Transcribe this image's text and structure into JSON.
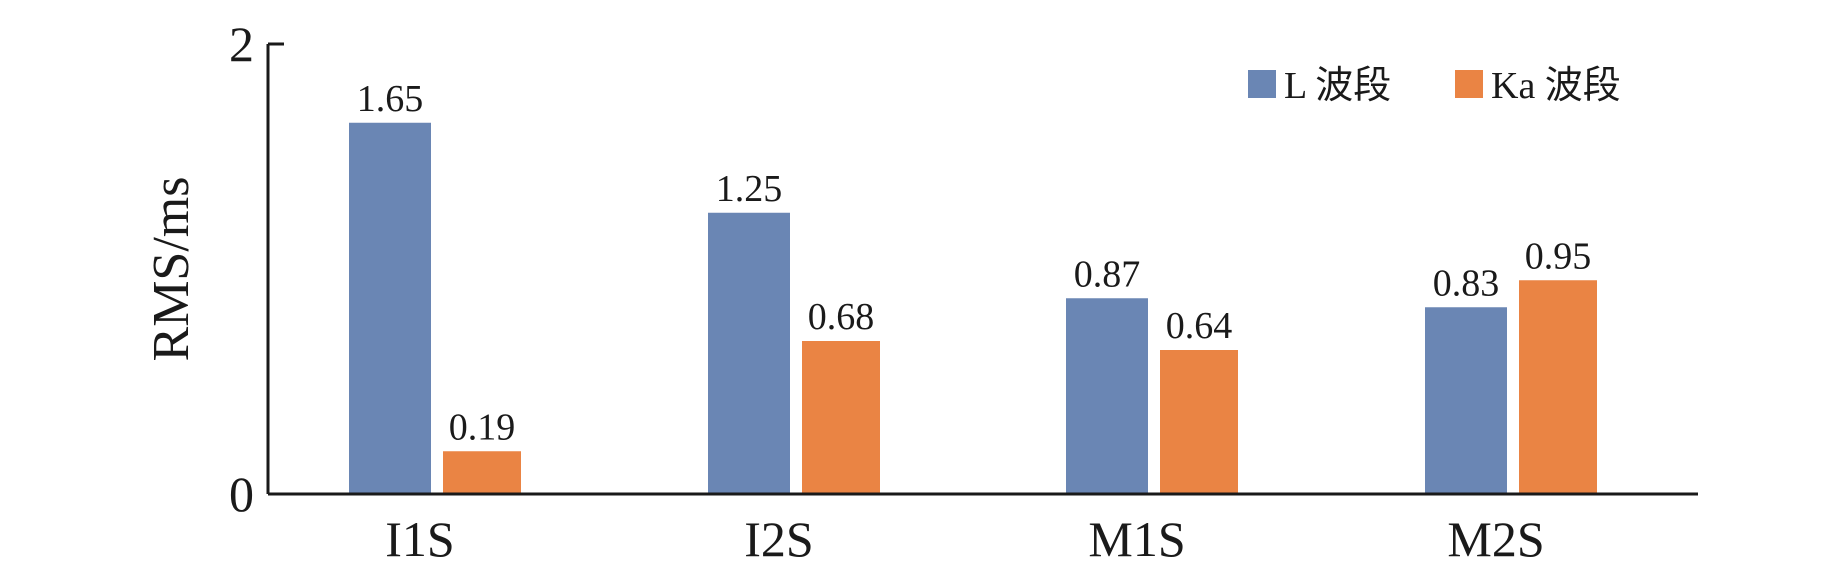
{
  "chart_data": {
    "type": "bar",
    "categories": [
      "I1S",
      "I2S",
      "M1S",
      "M2S"
    ],
    "series": [
      {
        "name": "L 波段",
        "color": "#6a86b4",
        "values": [
          1.65,
          1.25,
          0.87,
          0.83
        ]
      },
      {
        "name": "Ka 波段",
        "color": "#ea8444",
        "values": [
          0.19,
          0.68,
          0.64,
          0.95
        ]
      }
    ],
    "title": "",
    "xlabel": "",
    "ylabel": "RMS/ms",
    "ylim": [
      0,
      2
    ],
    "yticks": [
      0,
      2
    ],
    "legend_position": "top-right",
    "grid": false,
    "data_labels": [
      "1.65",
      "0.19",
      "1.25",
      "0.68",
      "0.87",
      "0.64",
      "0.83",
      "0.95"
    ]
  }
}
